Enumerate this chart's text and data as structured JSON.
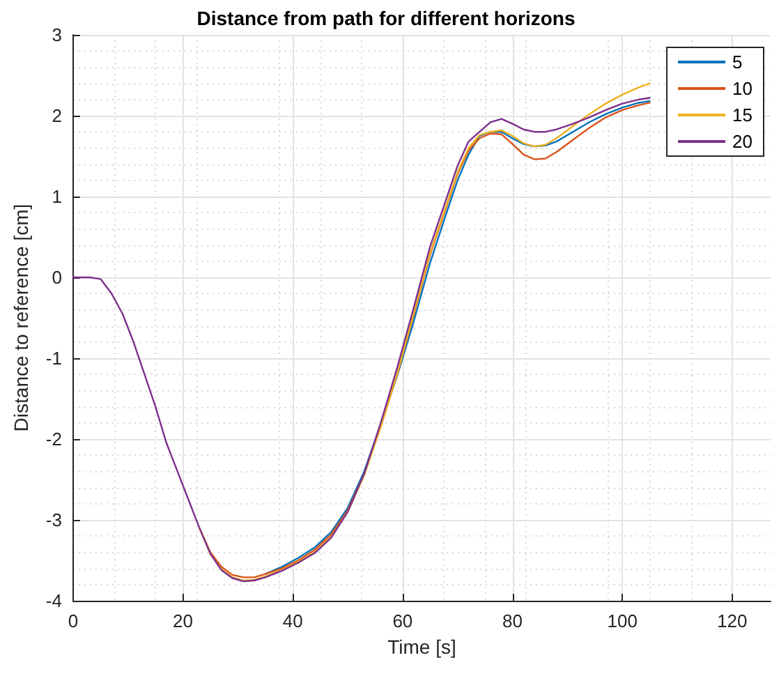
{
  "chart_data": {
    "type": "line",
    "title": "Distance from path for different horizons",
    "xlabel": "Time [s]",
    "ylabel": "Distance to reference [cm]",
    "x": [
      0,
      3,
      5,
      7,
      9,
      11,
      13,
      15,
      17,
      19,
      21,
      23,
      25,
      27,
      29,
      31,
      33,
      35,
      38,
      41,
      44,
      47,
      50,
      53,
      56,
      59,
      62,
      65,
      68,
      70,
      72,
      74,
      76,
      78,
      80,
      82,
      84,
      86,
      88,
      91,
      94,
      97,
      100,
      103,
      105
    ],
    "series": [
      {
        "name": "5",
        "color": "#0072bd",
        "values": [
          null,
          null,
          null,
          null,
          null,
          null,
          null,
          null,
          null,
          null,
          null,
          null,
          null,
          null,
          null,
          null,
          null,
          -3.67,
          -3.58,
          -3.47,
          -3.34,
          -3.15,
          -2.85,
          -2.4,
          -1.82,
          -1.22,
          -0.55,
          0.18,
          0.8,
          1.2,
          1.52,
          1.75,
          1.8,
          1.8,
          1.72,
          1.65,
          1.62,
          1.63,
          1.68,
          1.8,
          1.92,
          2.02,
          2.1,
          2.16,
          2.18
        ]
      },
      {
        "name": "10",
        "color": "#d95319",
        "values": [
          null,
          null,
          null,
          null,
          null,
          null,
          null,
          null,
          null,
          null,
          null,
          -3.1,
          -3.4,
          -3.58,
          -3.68,
          -3.71,
          -3.71,
          -3.67,
          -3.6,
          -3.5,
          -3.37,
          -3.18,
          -2.88,
          -2.43,
          -1.85,
          -1.2,
          -0.47,
          0.28,
          0.88,
          1.28,
          1.57,
          1.72,
          1.78,
          1.77,
          1.65,
          1.52,
          1.46,
          1.47,
          1.55,
          1.7,
          1.85,
          1.98,
          2.07,
          2.13,
          2.16
        ]
      },
      {
        "name": "15",
        "color": "#edb120",
        "values": [
          null,
          null,
          null,
          null,
          null,
          null,
          null,
          null,
          null,
          null,
          null,
          -3.1,
          -3.42,
          -3.61,
          -3.71,
          -3.75,
          -3.74,
          -3.7,
          -3.62,
          -3.52,
          -3.4,
          -3.21,
          -2.9,
          -2.45,
          -1.85,
          -1.2,
          -0.45,
          0.3,
          0.9,
          1.3,
          1.6,
          1.76,
          1.8,
          1.82,
          1.75,
          1.66,
          1.62,
          1.64,
          1.72,
          1.87,
          2.02,
          2.15,
          2.26,
          2.35,
          2.4
        ]
      },
      {
        "name": "20",
        "color": "#7e2f8e",
        "values": [
          0,
          0,
          -0.02,
          -0.2,
          -0.45,
          -0.8,
          -1.2,
          -1.6,
          -2.05,
          -2.4,
          -2.75,
          -3.1,
          -3.42,
          -3.62,
          -3.72,
          -3.76,
          -3.75,
          -3.71,
          -3.63,
          -3.53,
          -3.41,
          -3.22,
          -2.9,
          -2.43,
          -1.8,
          -1.12,
          -0.38,
          0.38,
          0.98,
          1.38,
          1.68,
          1.8,
          1.92,
          1.96,
          1.9,
          1.83,
          1.8,
          1.8,
          1.83,
          1.9,
          1.98,
          2.07,
          2.15,
          2.2,
          2.22
        ]
      }
    ],
    "xlim": [
      0,
      127
    ],
    "xticks": [
      0,
      20,
      40,
      60,
      80,
      100,
      120
    ],
    "ylim": [
      -4,
      3
    ],
    "yticks": [
      -4,
      -3,
      -2,
      -1,
      0,
      1,
      2,
      3
    ],
    "grid": true,
    "legend": "top right",
    "marker": "none",
    "line_style": "solid"
  }
}
